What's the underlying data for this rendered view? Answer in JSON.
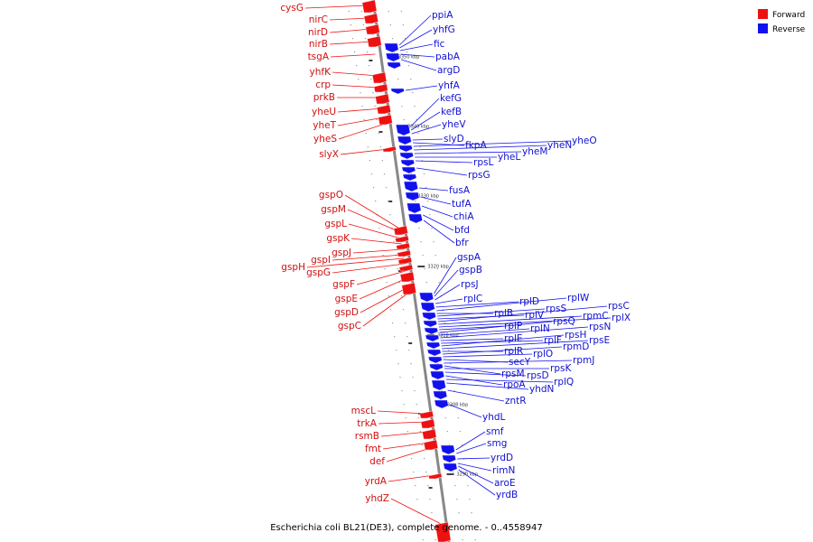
{
  "caption": "Escherichia coli BL21(DE3), complete genome. - 0..4558947",
  "legend": {
    "forward": {
      "label": "Forward",
      "color": "#ee1111"
    },
    "reverse": {
      "label": "Reverse",
      "color": "#1111ee"
    }
  },
  "kbp_ticks": [
    "3350 kbp",
    "3340 kbp",
    "3330 kbp",
    "3320 kbp",
    "3310 kbp",
    "3300 kbp",
    "3290 kbp"
  ],
  "forward_genes": [
    "cysG",
    "nirC",
    "nirD",
    "nirB",
    "tsgA",
    "yhfK",
    "crp",
    "prkB",
    "yheU",
    "yheT",
    "yheS",
    "slyX",
    "gspO",
    "gspM",
    "gspL",
    "gspK",
    "gspJ",
    "gspI",
    "gspH",
    "gspG",
    "gspF",
    "gspE",
    "gspD",
    "gspC",
    "mscL",
    "trkA",
    "rsmB",
    "fmt",
    "def",
    "yrdA",
    "yhdZ"
  ],
  "reverse_genes": [
    "ppiA",
    "yhfG",
    "fic",
    "pabA",
    "argD",
    "yhfA",
    "kefG",
    "kefB",
    "yheV",
    "slyD",
    "fkpA",
    "yheO",
    "yheN",
    "yheM",
    "yheL",
    "rpsL",
    "rpsG",
    "fusA",
    "tufA",
    "chiA",
    "bfd",
    "bfr",
    "gspA",
    "gspB",
    "rpsJ",
    "rplC",
    "rplD",
    "rplW",
    "rplB",
    "rpsS",
    "rplV",
    "rpsC",
    "rpmC",
    "rplX",
    "rplP",
    "rpsQ",
    "rplN",
    "rpsN",
    "rplE",
    "rplF",
    "rpsH",
    "rpsE",
    "rplR",
    "rpmD",
    "rplO",
    "secY",
    "rpmJ",
    "rpsM",
    "rpsK",
    "rpsD",
    "rpoA",
    "rplQ",
    "yhdN",
    "zntR",
    "yhdL",
    "smf",
    "smg",
    "yrdD",
    "rimN",
    "aroE",
    "yrdB"
  ]
}
